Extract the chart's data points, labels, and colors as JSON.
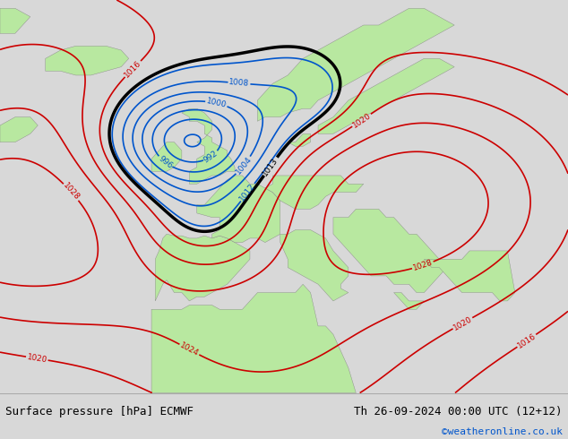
{
  "title_left": "Surface pressure [hPa] ECMWF",
  "title_right": "Th 26-09-2024 00:00 UTC (12+12)",
  "copyright": "©weatheronline.co.uk",
  "bg_color": "#d8d8e8",
  "land_color": "#b8e8a0",
  "mountain_color": "#a0a0a0",
  "text_color_black": "#000000",
  "text_color_blue": "#0055cc",
  "text_color_red": "#cc0000",
  "footer_bg": "#d8d8d8",
  "figsize": [
    6.34,
    4.9
  ],
  "dpi": 100
}
